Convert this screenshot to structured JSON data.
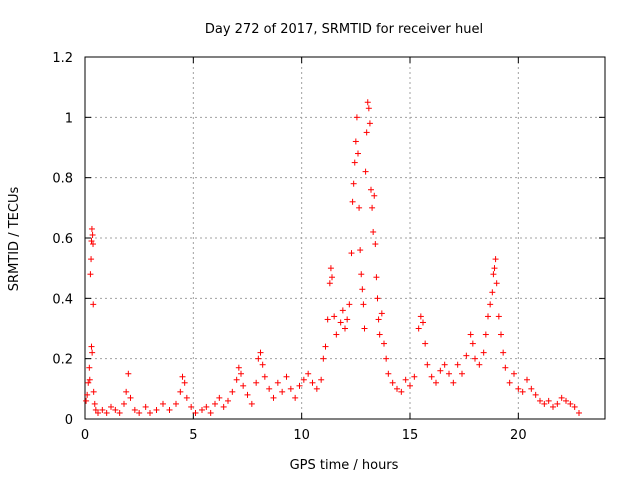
{
  "chart_data": {
    "type": "scatter",
    "title": "Day 272 of 2017, SRMTID for receiver huel",
    "xlabel": "GPS time / hours",
    "ylabel": "SRMTID / TECUs",
    "xlim": [
      0,
      24
    ],
    "ylim": [
      0,
      1.2
    ],
    "x_ticks": [
      0,
      5,
      10,
      15,
      20
    ],
    "x_tick_labels": [
      "0",
      "5",
      "10",
      "15",
      "20"
    ],
    "y_ticks": [
      0,
      0.2,
      0.4,
      0.6,
      0.8,
      1,
      1.2
    ],
    "y_tick_labels": [
      "0",
      "0.2",
      "0.4",
      "0.6",
      "0.8",
      "1",
      "1.2"
    ],
    "grid": true,
    "marker": "+",
    "series": [
      {
        "name": "SRMTID",
        "color": "#ff0000",
        "points": [
          [
            0.05,
            0.06
          ],
          [
            0.1,
            0.08
          ],
          [
            0.15,
            0.12
          ],
          [
            0.2,
            0.17
          ],
          [
            0.22,
            0.13
          ],
          [
            0.25,
            0.48
          ],
          [
            0.28,
            0.53
          ],
          [
            0.3,
            0.59
          ],
          [
            0.32,
            0.63
          ],
          [
            0.35,
            0.61
          ],
          [
            0.37,
            0.58
          ],
          [
            0.38,
            0.38
          ],
          [
            0.3,
            0.24
          ],
          [
            0.33,
            0.22
          ],
          [
            0.4,
            0.09
          ],
          [
            0.45,
            0.05
          ],
          [
            0.5,
            0.03
          ],
          [
            0.6,
            0.02
          ],
          [
            0.8,
            0.03
          ],
          [
            1.0,
            0.02
          ],
          [
            1.2,
            0.04
          ],
          [
            1.4,
            0.03
          ],
          [
            1.6,
            0.02
          ],
          [
            1.8,
            0.05
          ],
          [
            1.9,
            0.09
          ],
          [
            2.0,
            0.15
          ],
          [
            2.1,
            0.07
          ],
          [
            2.3,
            0.03
          ],
          [
            2.5,
            0.02
          ],
          [
            2.8,
            0.04
          ],
          [
            3.0,
            0.02
          ],
          [
            3.3,
            0.03
          ],
          [
            3.6,
            0.05
          ],
          [
            3.9,
            0.03
          ],
          [
            4.2,
            0.05
          ],
          [
            4.4,
            0.09
          ],
          [
            4.5,
            0.14
          ],
          [
            4.6,
            0.12
          ],
          [
            4.7,
            0.07
          ],
          [
            4.9,
            0.04
          ],
          [
            5.1,
            0.02
          ],
          [
            5.4,
            0.03
          ],
          [
            5.6,
            0.04
          ],
          [
            5.8,
            0.02
          ],
          [
            6.0,
            0.05
          ],
          [
            6.2,
            0.07
          ],
          [
            6.4,
            0.04
          ],
          [
            6.6,
            0.06
          ],
          [
            6.8,
            0.09
          ],
          [
            7.0,
            0.13
          ],
          [
            7.1,
            0.17
          ],
          [
            7.2,
            0.15
          ],
          [
            7.3,
            0.11
          ],
          [
            7.5,
            0.08
          ],
          [
            7.7,
            0.05
          ],
          [
            7.9,
            0.12
          ],
          [
            8.0,
            0.2
          ],
          [
            8.1,
            0.22
          ],
          [
            8.2,
            0.18
          ],
          [
            8.3,
            0.14
          ],
          [
            8.5,
            0.1
          ],
          [
            8.7,
            0.07
          ],
          [
            8.9,
            0.12
          ],
          [
            9.1,
            0.09
          ],
          [
            9.3,
            0.14
          ],
          [
            9.5,
            0.1
          ],
          [
            9.7,
            0.07
          ],
          [
            9.9,
            0.11
          ],
          [
            10.1,
            0.13
          ],
          [
            10.3,
            0.15
          ],
          [
            10.5,
            0.12
          ],
          [
            10.7,
            0.1
          ],
          [
            10.9,
            0.13
          ],
          [
            11.0,
            0.2
          ],
          [
            11.1,
            0.24
          ],
          [
            11.2,
            0.33
          ],
          [
            11.3,
            0.45
          ],
          [
            11.35,
            0.5
          ],
          [
            11.4,
            0.47
          ],
          [
            11.5,
            0.34
          ],
          [
            11.6,
            0.28
          ],
          [
            11.8,
            0.32
          ],
          [
            11.9,
            0.36
          ],
          [
            12.0,
            0.3
          ],
          [
            12.1,
            0.33
          ],
          [
            12.2,
            0.38
          ],
          [
            12.3,
            0.55
          ],
          [
            12.35,
            0.72
          ],
          [
            12.4,
            0.78
          ],
          [
            12.45,
            0.85
          ],
          [
            12.5,
            0.92
          ],
          [
            12.55,
            1.0
          ],
          [
            12.6,
            0.88
          ],
          [
            12.65,
            0.7
          ],
          [
            12.7,
            0.56
          ],
          [
            12.75,
            0.48
          ],
          [
            12.8,
            0.43
          ],
          [
            12.85,
            0.38
          ],
          [
            12.9,
            0.3
          ],
          [
            12.95,
            0.82
          ],
          [
            13.0,
            0.95
          ],
          [
            13.05,
            1.05
          ],
          [
            13.1,
            1.03
          ],
          [
            13.15,
            0.98
          ],
          [
            13.2,
            0.76
          ],
          [
            13.25,
            0.7
          ],
          [
            13.3,
            0.62
          ],
          [
            13.35,
            0.74
          ],
          [
            13.4,
            0.58
          ],
          [
            13.45,
            0.47
          ],
          [
            13.5,
            0.4
          ],
          [
            13.55,
            0.33
          ],
          [
            13.6,
            0.28
          ],
          [
            13.7,
            0.35
          ],
          [
            13.8,
            0.25
          ],
          [
            13.9,
            0.2
          ],
          [
            14.0,
            0.15
          ],
          [
            14.2,
            0.12
          ],
          [
            14.4,
            0.1
          ],
          [
            14.6,
            0.09
          ],
          [
            14.8,
            0.13
          ],
          [
            15.0,
            0.11
          ],
          [
            15.2,
            0.14
          ],
          [
            15.4,
            0.3
          ],
          [
            15.5,
            0.34
          ],
          [
            15.6,
            0.32
          ],
          [
            15.7,
            0.25
          ],
          [
            15.8,
            0.18
          ],
          [
            16.0,
            0.14
          ],
          [
            16.2,
            0.12
          ],
          [
            16.4,
            0.16
          ],
          [
            16.6,
            0.18
          ],
          [
            16.8,
            0.15
          ],
          [
            17.0,
            0.12
          ],
          [
            17.2,
            0.18
          ],
          [
            17.4,
            0.15
          ],
          [
            17.6,
            0.21
          ],
          [
            17.8,
            0.28
          ],
          [
            17.9,
            0.25
          ],
          [
            18.0,
            0.2
          ],
          [
            18.2,
            0.18
          ],
          [
            18.4,
            0.22
          ],
          [
            18.5,
            0.28
          ],
          [
            18.6,
            0.34
          ],
          [
            18.7,
            0.38
          ],
          [
            18.8,
            0.42
          ],
          [
            18.85,
            0.48
          ],
          [
            18.9,
            0.5
          ],
          [
            18.95,
            0.53
          ],
          [
            19.0,
            0.45
          ],
          [
            19.1,
            0.34
          ],
          [
            19.2,
            0.28
          ],
          [
            19.3,
            0.22
          ],
          [
            19.4,
            0.17
          ],
          [
            19.6,
            0.12
          ],
          [
            19.8,
            0.15
          ],
          [
            20.0,
            0.1
          ],
          [
            20.2,
            0.09
          ],
          [
            20.4,
            0.13
          ],
          [
            20.6,
            0.1
          ],
          [
            20.8,
            0.08
          ],
          [
            21.0,
            0.06
          ],
          [
            21.2,
            0.05
          ],
          [
            21.4,
            0.06
          ],
          [
            21.6,
            0.04
          ],
          [
            21.8,
            0.05
          ],
          [
            22.0,
            0.07
          ],
          [
            22.2,
            0.06
          ],
          [
            22.4,
            0.05
          ],
          [
            22.6,
            0.04
          ],
          [
            22.8,
            0.02
          ]
        ]
      }
    ]
  }
}
